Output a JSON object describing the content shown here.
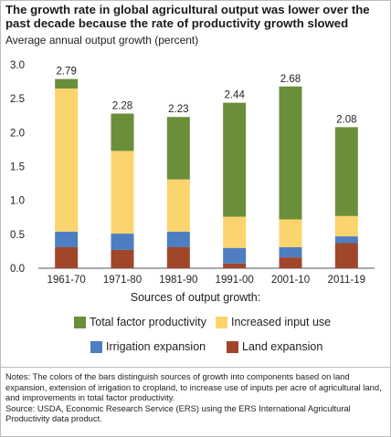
{
  "title": "The growth rate in global agricultural output was lower over the past decade because the rate of productivity growth slowed",
  "colors": {
    "tfp": "#6b8e3b",
    "input": "#fcd46e",
    "irrigation": "#4e7ec1",
    "land": "#a0462a"
  },
  "chart_data": {
    "type": "bar",
    "stacked": true,
    "ylabel": "Average annual output growth (percent)",
    "xlabel": "",
    "ylim": [
      0,
      3.0
    ],
    "yticks": [
      "0.0",
      "0.5",
      "1.0",
      "1.5",
      "2.0",
      "2.5",
      "3.0"
    ],
    "grid": false,
    "legend_position": "bottom",
    "categories": [
      "1961-70",
      "1971-80",
      "1981-90",
      "1991-00",
      "2001-10",
      "2011-19"
    ],
    "totals": [
      "2.79",
      "2.28",
      "2.23",
      "2.44",
      "2.68",
      "2.08"
    ],
    "series": [
      {
        "name": "Land expansion",
        "key": "land",
        "values": [
          0.31,
          0.27,
          0.31,
          0.07,
          0.16,
          0.37
        ]
      },
      {
        "name": "Irrigation expansion",
        "key": "irrigation",
        "values": [
          0.23,
          0.24,
          0.23,
          0.23,
          0.15,
          0.1
        ]
      },
      {
        "name": "Increased input use",
        "key": "input",
        "values": [
          2.11,
          1.22,
          0.77,
          0.46,
          0.41,
          0.3
        ]
      },
      {
        "name": "Total factor productivity",
        "key": "tfp",
        "values": [
          0.14,
          0.55,
          0.92,
          1.68,
          1.96,
          1.31
        ]
      }
    ]
  },
  "legend": {
    "title": "Sources of output growth:",
    "items": [
      {
        "label": "Total factor productivity",
        "key": "tfp"
      },
      {
        "label": "Increased input use",
        "key": "input"
      },
      {
        "label": "Irrigation expansion",
        "key": "irrigation"
      },
      {
        "label": "Land expansion",
        "key": "land"
      }
    ]
  },
  "notes": {
    "note": "Notes: The colors of the bars distinguish sources of growth into components based on land expansion, extension of irrigation to cropland, to increase use of inputs per acre of agricultural land, and improvements in total factor productivity.",
    "source": "Source: USDA, Economic Research Service (ERS) using the ERS International Agricultural Productivity data product."
  }
}
